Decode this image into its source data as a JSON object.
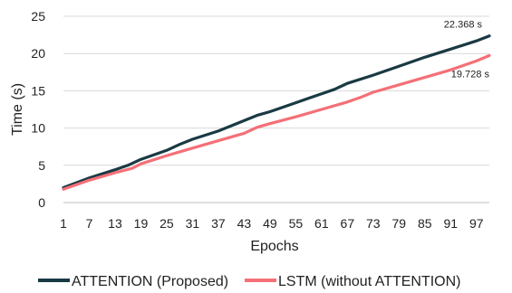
{
  "chart_data": {
    "type": "line",
    "title": "",
    "xlabel": "Epochs",
    "ylabel": "Time (s)",
    "ylim": [
      0,
      25
    ],
    "yticks": [
      0,
      5,
      10,
      15,
      20,
      25
    ],
    "xticks": [
      1,
      7,
      13,
      19,
      25,
      31,
      37,
      43,
      49,
      55,
      61,
      67,
      73,
      79,
      85,
      91,
      97
    ],
    "xlim": [
      1,
      100
    ],
    "grid": "y",
    "legend_position": "bottom",
    "series": [
      {
        "name": "ATTENTION (Proposed)",
        "color": "#1a3a43",
        "end_label": "22.368 s",
        "x": [
          1,
          7,
          13,
          16,
          19,
          25,
          28,
          31,
          37,
          40,
          43,
          46,
          49,
          55,
          58,
          61,
          64,
          67,
          73,
          79,
          85,
          91,
          97,
          100
        ],
        "y": [
          2.0,
          3.3,
          4.4,
          5.0,
          5.8,
          7.0,
          7.8,
          8.5,
          9.6,
          10.3,
          11.0,
          11.7,
          12.2,
          13.4,
          14.0,
          14.6,
          15.2,
          16.0,
          17.1,
          18.3,
          19.5,
          20.6,
          21.7,
          22.368
        ]
      },
      {
        "name": "LSTM (without ATTENTION)",
        "color": "#f47077",
        "end_label": "19.728 s",
        "x": [
          1,
          7,
          13,
          17,
          19,
          25,
          31,
          37,
          43,
          46,
          49,
          55,
          61,
          67,
          70,
          73,
          79,
          85,
          91,
          97,
          100
        ],
        "y": [
          1.8,
          3.0,
          4.0,
          4.6,
          5.2,
          6.3,
          7.3,
          8.3,
          9.3,
          10.1,
          10.6,
          11.5,
          12.5,
          13.5,
          14.1,
          14.8,
          15.8,
          16.8,
          17.8,
          19.0,
          19.728
        ]
      }
    ]
  }
}
